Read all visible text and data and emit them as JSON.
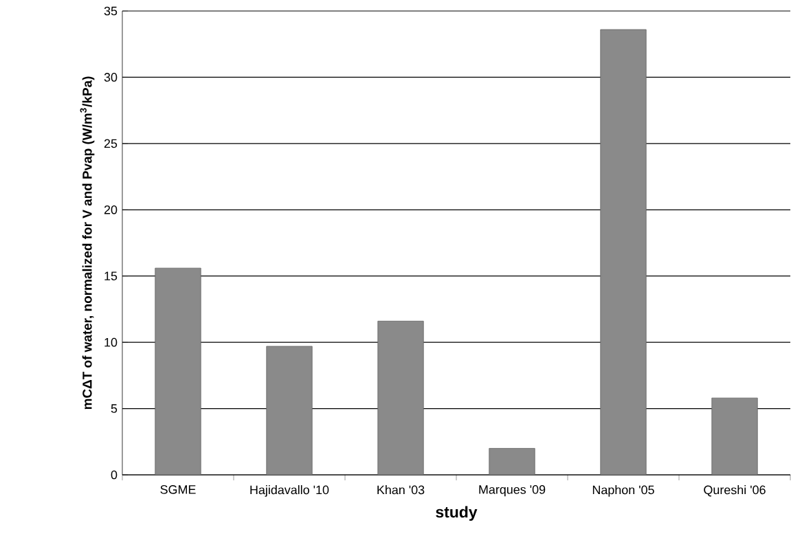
{
  "chart_data": {
    "type": "bar",
    "xlabel": "study",
    "ylabel": "mCΔT of water, normalized for V and Pvap (W/m$^{3}$/kPa)",
    "categories": [
      "SGME",
      "Hajidavallo '10",
      "Khan '03",
      "Marques '09",
      "Naphon '05",
      "Qureshi '06"
    ],
    "values": [
      15.6,
      9.7,
      11.6,
      2.0,
      33.6,
      5.8
    ],
    "color": "#8a8a8a",
    "ylim": [
      0,
      35
    ],
    "yticks": [
      0,
      5,
      10,
      15,
      20,
      25,
      30,
      35
    ],
    "grid": "y"
  }
}
